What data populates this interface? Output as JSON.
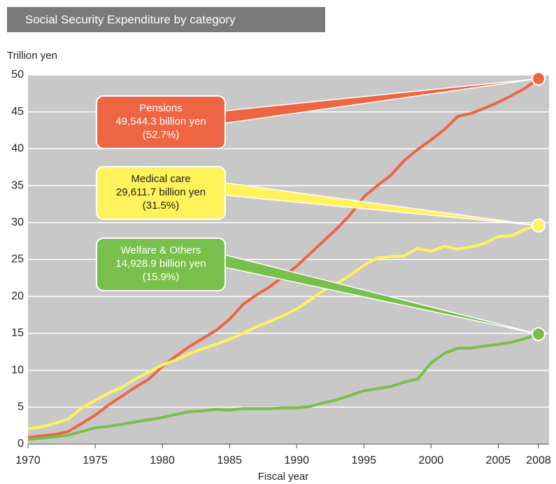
{
  "chart_data": {
    "type": "line",
    "title": "Social Security Expenditure by category",
    "ylabel": "Trillion yen",
    "xlabel": "Fiscal year",
    "x": [
      1970,
      1971,
      1972,
      1973,
      1974,
      1975,
      1976,
      1977,
      1978,
      1979,
      1980,
      1981,
      1982,
      1983,
      1984,
      1985,
      1986,
      1987,
      1988,
      1989,
      1990,
      1991,
      1992,
      1993,
      1994,
      1995,
      1996,
      1997,
      1998,
      1999,
      2000,
      2001,
      2002,
      2003,
      2004,
      2005,
      2006,
      2007,
      2008
    ],
    "series": [
      {
        "name": "Pensions",
        "color": "#ee6543",
        "callout": [
          "Pensions",
          "49,544.3 billion yen",
          "(52.7%)"
        ],
        "values": [
          0.9,
          1.1,
          1.3,
          1.7,
          2.8,
          3.9,
          5.3,
          6.5,
          7.7,
          8.8,
          10.5,
          11.9,
          13.2,
          14.3,
          15.4,
          16.9,
          18.9,
          20.2,
          21.3,
          22.7,
          24.1,
          25.8,
          27.5,
          29.2,
          31.1,
          33.5,
          35.0,
          36.4,
          38.4,
          39.9,
          41.2,
          42.6,
          44.4,
          44.8,
          45.5,
          46.3,
          47.2,
          48.2,
          49.5
        ]
      },
      {
        "name": "Medical care",
        "color": "#fff25a",
        "callout": [
          "Medical care",
          "29,611.7 billion yen",
          "(31.5%)"
        ],
        "values": [
          2.1,
          2.3,
          2.8,
          3.4,
          4.9,
          5.9,
          6.9,
          7.7,
          8.8,
          9.8,
          10.7,
          11.4,
          12.2,
          12.9,
          13.5,
          14.2,
          15.0,
          15.9,
          16.6,
          17.4,
          18.3,
          19.5,
          20.8,
          21.8,
          22.9,
          24.2,
          25.2,
          25.4,
          25.5,
          26.5,
          26.1,
          26.8,
          26.4,
          26.7,
          27.2,
          28.1,
          28.2,
          29.1,
          29.6
        ]
      },
      {
        "name": "Welfare & Others",
        "color": "#78bf4b",
        "callout": [
          "Welfare & Others",
          "14,928.9 billion yen",
          "(15.9%)"
        ],
        "values": [
          0.6,
          0.8,
          1.0,
          1.2,
          1.7,
          2.2,
          2.4,
          2.7,
          3.0,
          3.3,
          3.6,
          4.0,
          4.4,
          4.5,
          4.7,
          4.6,
          4.8,
          4.8,
          4.8,
          4.9,
          4.9,
          5.1,
          5.6,
          6.0,
          6.6,
          7.2,
          7.5,
          7.8,
          8.4,
          8.8,
          11.0,
          12.3,
          13.0,
          13.0,
          13.3,
          13.5,
          13.8,
          14.3,
          14.9
        ]
      }
    ],
    "xlim": [
      1970,
      2008
    ],
    "xticks": [
      1970,
      1975,
      1980,
      1985,
      1990,
      1995,
      2000,
      2005,
      2008
    ],
    "ylim": [
      0,
      50
    ],
    "yticks": [
      0,
      5,
      10,
      15,
      20,
      25,
      30,
      35,
      40,
      45,
      50
    ],
    "grid": true,
    "background": "#c8c8c8"
  }
}
